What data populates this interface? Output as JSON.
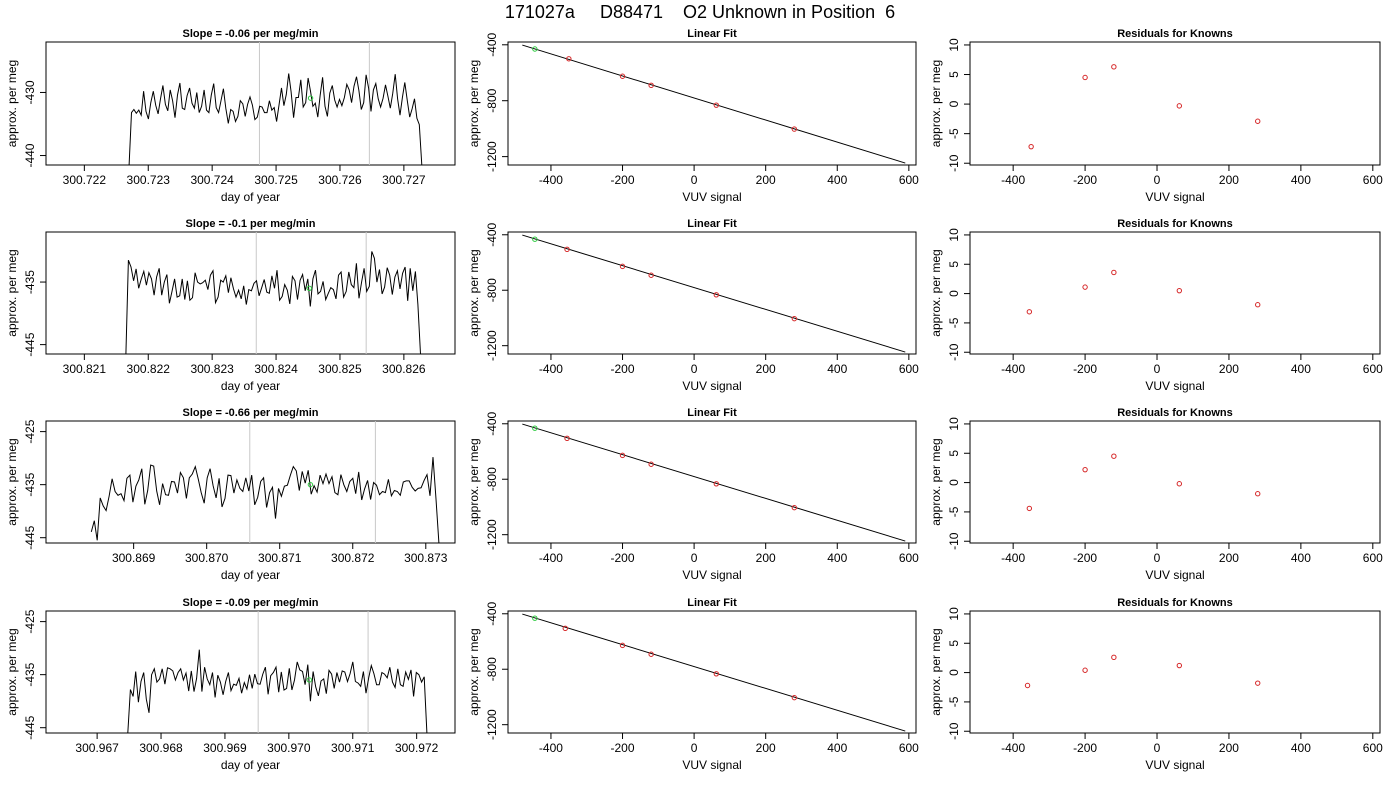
{
  "page_title": "171027a     D88471    O2 Unknown in Position  6",
  "chart_data": [
    {
      "type": "line",
      "title": "Slope =  -0.06  per meg/min",
      "xlabel": "day of year",
      "ylabel": "approx. per meg",
      "xlim": [
        300.7214,
        300.7278
      ],
      "ylim": [
        -441.5,
        -422
      ],
      "x_ticks": [
        "300.722",
        "300.723",
        "300.724",
        "300.725",
        "300.726",
        "300.727"
      ],
      "y_ticks": [
        "-440",
        "-430"
      ],
      "y_tick_values": [
        -440,
        -430
      ],
      "trace": {
        "x_start": 300.7227,
        "x_end": 300.72728,
        "values": [
          -441.5,
          -433.2,
          -432.7,
          -433.3,
          -432.8,
          -433.6,
          -429.8,
          -433.0,
          -434.2,
          -431.6,
          -429.8,
          -432.0,
          -433.4,
          -431.0,
          -428.9,
          -431.9,
          -432.9,
          -429.6,
          -431.3,
          -434.0,
          -430.4,
          -428.5,
          -432.5,
          -432.7,
          -430.5,
          -429.3,
          -431.7,
          -432.5,
          -430.0,
          -433.2,
          -432.2,
          -429.6,
          -432.8,
          -433.2,
          -430.4,
          -428.6,
          -432.4,
          -433.2,
          -431.3,
          -429.4,
          -432.5,
          -434.9,
          -432.7,
          -433.0,
          -434.6,
          -433.8,
          -431.3,
          -431.8,
          -433.8,
          -431.9,
          -430.7,
          -432.0,
          -434.3,
          -433.9,
          -432.2,
          -432.3,
          -433.2,
          -433.2,
          -431.3,
          -432.8,
          -432.4,
          -434.6,
          -431.9,
          -429.3,
          -432.1,
          -430.3,
          -427.0,
          -429.9,
          -434.0,
          -430.8,
          -430.8,
          -428.0,
          -432.3,
          -431.6,
          -427.7,
          -429.8,
          -432.2,
          -431.7,
          -433.9,
          -430.4,
          -427.6,
          -432.2,
          -433.8,
          -430.1,
          -428.9,
          -431.2,
          -432.3,
          -431.1,
          -432.1,
          -430.8,
          -428.7,
          -429.6,
          -431.6,
          -429.0,
          -427.5,
          -429.7,
          -432.7,
          -431.6,
          -427.2,
          -429.3,
          -433.0,
          -429.6,
          -428.6,
          -431.0,
          -432.3,
          -430.9,
          -428.8,
          -430.6,
          -432.5,
          -430.2,
          -427.1,
          -431.0,
          -433.6,
          -430.8,
          -428.4,
          -431.3,
          -433.9,
          -432.6,
          -431.0,
          -434.1,
          -435.1,
          -441.5
        ]
      },
      "vlines": [
        300.72474,
        300.72646
      ],
      "green_point": {
        "x": 300.72554,
        "y": -430.9
      }
    },
    {
      "type": "scatter",
      "title": "Linear Fit",
      "xlabel": "VUV signal",
      "ylabel": "approx. per meg",
      "xlim": [
        -520,
        620
      ],
      "ylim": [
        -1260,
        -380
      ],
      "x_ticks": [
        "-400",
        "-200",
        "0",
        "200",
        "400",
        "600"
      ],
      "y_ticks": [
        "-400",
        "-800",
        "-1200"
      ],
      "y_tick_values": [
        -400,
        -800,
        -1200
      ],
      "fit_line": {
        "x": [
          -480,
          590
        ],
        "y": [
          -402,
          -1246
        ]
      },
      "known_points": [
        {
          "x": -350,
          "y": -500
        },
        {
          "x": -200,
          "y": -625
        },
        {
          "x": -120,
          "y": -690
        },
        {
          "x": 62,
          "y": -832
        },
        {
          "x": 280,
          "y": -1003
        }
      ],
      "unknown_point": {
        "x": -445,
        "y": -430
      }
    },
    {
      "type": "scatter",
      "title": "Residuals for Knowns",
      "xlabel": "VUV signal",
      "ylabel": "approx. per meg",
      "xlim": [
        -520,
        620
      ],
      "ylim": [
        -10.3,
        10.5
      ],
      "x_ticks": [
        "-400",
        "-200",
        "0",
        "200",
        "400",
        "600"
      ],
      "y_ticks": [
        "-10",
        "-5",
        "0",
        "5",
        "10"
      ],
      "y_tick_values": [
        -10,
        -5,
        0,
        5,
        10
      ],
      "points": [
        {
          "x": -350,
          "y": -7.2
        },
        {
          "x": -200,
          "y": 4.5
        },
        {
          "x": -120,
          "y": 6.3
        },
        {
          "x": 62,
          "y": -0.3
        },
        {
          "x": 280,
          "y": -2.9
        }
      ]
    },
    {
      "type": "line",
      "title": "Slope =  -0.1  per meg/min",
      "xlabel": "day of year",
      "ylabel": "approx. per meg",
      "xlim": [
        300.8204,
        300.8268
      ],
      "ylim": [
        -446.5,
        -427
      ],
      "x_ticks": [
        "300.821",
        "300.822",
        "300.823",
        "300.824",
        "300.825",
        "300.826"
      ],
      "y_ticks": [
        "-445",
        "-435"
      ],
      "y_tick_values": [
        -445,
        -435
      ],
      "trace": {
        "x_start": 300.82165,
        "x_end": 300.82626,
        "values": [
          -446.5,
          -431.5,
          -432.6,
          -434.8,
          -432.9,
          -436.0,
          -434.5,
          -433.3,
          -435.5,
          -433.5,
          -434.5,
          -437.1,
          -434.2,
          -432.8,
          -437.1,
          -435.0,
          -433.8,
          -438.4,
          -436.5,
          -434.5,
          -437.4,
          -437.2,
          -434.5,
          -437.8,
          -434.8,
          -437.9,
          -437.5,
          -433.5,
          -435.0,
          -435.3,
          -435.1,
          -434.7,
          -436.2,
          -433.9,
          -433.2,
          -438.3,
          -437.4,
          -434.7,
          -435.0,
          -434.0,
          -436.7,
          -434.3,
          -436.1,
          -437.4,
          -436.3,
          -437.7,
          -435.6,
          -438.6,
          -436.2,
          -436.4,
          -435.2,
          -434.8,
          -437.2,
          -435.9,
          -434.6,
          -436.6,
          -436.8,
          -434.0,
          -436.0,
          -433.1,
          -437.9,
          -437.3,
          -435.4,
          -436.3,
          -438.5,
          -434.1,
          -434.8,
          -437.8,
          -434.7,
          -433.8,
          -436.4,
          -434.5,
          -438.9,
          -434.5,
          -433.1,
          -436.9,
          -436.5,
          -434.9,
          -437.8,
          -436.8,
          -435.9,
          -436.2,
          -437.7,
          -433.9,
          -433.4,
          -437.4,
          -436.5,
          -433.4,
          -435.4,
          -435.9,
          -432.0,
          -437.6,
          -435.0,
          -432.8,
          -436.5,
          -435.7,
          -430.1,
          -431.2,
          -435.0,
          -433.0,
          -436.9,
          -435.8,
          -432.7,
          -433.9,
          -437.0,
          -434.2,
          -433.2,
          -436.1,
          -433.6,
          -432.6,
          -438.0,
          -432.8,
          -436.4,
          -433.3,
          -438.6,
          -446.5
        ]
      },
      "vlines": [
        300.82369,
        300.82541
      ],
      "green_point": {
        "x": 300.82452,
        "y": -436.0
      }
    },
    {
      "type": "scatter",
      "title": "Linear Fit",
      "xlabel": "VUV signal",
      "ylabel": "approx. per meg",
      "xlim": [
        -520,
        620
      ],
      "ylim": [
        -1260,
        -380
      ],
      "x_ticks": [
        "-400",
        "-200",
        "0",
        "200",
        "400",
        "600"
      ],
      "y_ticks": [
        "-400",
        "-800",
        "-1200"
      ],
      "y_tick_values": [
        -400,
        -800,
        -1200
      ],
      "fit_line": {
        "x": [
          -480,
          590
        ],
        "y": [
          -402,
          -1246
        ]
      },
      "known_points": [
        {
          "x": -355,
          "y": -505
        },
        {
          "x": -200,
          "y": -628
        },
        {
          "x": -120,
          "y": -692
        },
        {
          "x": 62,
          "y": -833
        },
        {
          "x": 280,
          "y": -1005
        }
      ],
      "unknown_point": {
        "x": -445,
        "y": -432
      }
    },
    {
      "type": "scatter",
      "title": "Residuals for Knowns",
      "xlabel": "VUV signal",
      "ylabel": "approx. per meg",
      "xlim": [
        -520,
        620
      ],
      "ylim": [
        -10.3,
        10.5
      ],
      "x_ticks": [
        "-400",
        "-200",
        "0",
        "200",
        "400",
        "600"
      ],
      "y_ticks": [
        "-10",
        "-5",
        "0",
        "5",
        "10"
      ],
      "y_tick_values": [
        -10,
        -5,
        0,
        5,
        10
      ],
      "points": [
        {
          "x": -355,
          "y": -3.1
        },
        {
          "x": -200,
          "y": 1.1
        },
        {
          "x": -120,
          "y": 3.6
        },
        {
          "x": 62,
          "y": 0.5
        },
        {
          "x": 280,
          "y": -1.9
        }
      ]
    },
    {
      "type": "line",
      "title": "Slope =  -0.66  per meg/min",
      "xlabel": "day of year",
      "ylabel": "approx. per meg",
      "xlim": [
        300.8678,
        300.8734
      ],
      "ylim": [
        -446,
        -423
      ],
      "x_ticks": [
        "300.869",
        "300.870",
        "300.871",
        "300.872",
        "300.873"
      ],
      "y_ticks": [
        "-445",
        "-435",
        "-425"
      ],
      "y_tick_values": [
        -445,
        -435,
        -425
      ],
      "trace": {
        "x_start": 300.86842,
        "x_end": 300.87318,
        "values": [
          -443.9,
          -441.8,
          -445.5,
          -437.5,
          -439.0,
          -439.9,
          -437.2,
          -433.9,
          -436.3,
          -437.0,
          -436.7,
          -438.0,
          -433.8,
          -433.2,
          -438.3,
          -435.3,
          -434.1,
          -432.0,
          -438.7,
          -436.1,
          -431.3,
          -431.5,
          -436.2,
          -438.8,
          -434.8,
          -436.9,
          -437.0,
          -434.4,
          -434.5,
          -436.6,
          -432.7,
          -433.7,
          -437.6,
          -433.7,
          -433.0,
          -431.6,
          -434.0,
          -436.5,
          -438.5,
          -433.7,
          -432.0,
          -435.2,
          -437.5,
          -433.8,
          -439.2,
          -437.6,
          -433.2,
          -433.3,
          -436.6,
          -434.1,
          -435.7,
          -436.3,
          -433.7,
          -436.2,
          -433.2,
          -438.8,
          -437.4,
          -434.4,
          -433.7,
          -439.3,
          -436.5,
          -435.5,
          -441.4,
          -435.7,
          -437.2,
          -435.3,
          -435.1,
          -433.2,
          -431.6,
          -432.4,
          -436.1,
          -432.5,
          -434.7,
          -432.3,
          -436.8,
          -435.2,
          -436.4,
          -433.2,
          -434.8,
          -433.0,
          -434.8,
          -433.5,
          -436.5,
          -436.9,
          -433.1,
          -435.0,
          -436.3,
          -434.4,
          -433.8,
          -436.7,
          -432.6,
          -437.9,
          -435.8,
          -434.2,
          -437.8,
          -434.6,
          -435.1,
          -436.9,
          -436.3,
          -436.5,
          -434.0,
          -437.1,
          -436.1,
          -436.3,
          -437.0,
          -434.5,
          -434.3,
          -434.3,
          -435.5,
          -436.2,
          -435.7,
          -435.6,
          -434.2,
          -433.1,
          -437.1,
          -429.8,
          -437.7,
          -446.0
        ]
      },
      "vlines": [
        300.87059,
        300.87231
      ],
      "green_point": {
        "x": 300.87142,
        "y": -435.0
      }
    },
    {
      "type": "scatter",
      "title": "Linear Fit",
      "xlabel": "VUV signal",
      "ylabel": "approx. per meg",
      "xlim": [
        -520,
        620
      ],
      "ylim": [
        -1260,
        -380
      ],
      "x_ticks": [
        "-400",
        "-200",
        "0",
        "200",
        "400",
        "600"
      ],
      "y_ticks": [
        "-400",
        "-800",
        "-1200"
      ],
      "y_tick_values": [
        -400,
        -800,
        -1200
      ],
      "fit_line": {
        "x": [
          -480,
          590
        ],
        "y": [
          -402,
          -1246
        ]
      },
      "known_points": [
        {
          "x": -355,
          "y": -505
        },
        {
          "x": -200,
          "y": -628
        },
        {
          "x": -120,
          "y": -692
        },
        {
          "x": 62,
          "y": -833
        },
        {
          "x": 280,
          "y": -1005
        }
      ],
      "unknown_point": {
        "x": -445,
        "y": -432
      }
    },
    {
      "type": "scatter",
      "title": "Residuals for Knowns",
      "xlabel": "VUV signal",
      "ylabel": "approx. per meg",
      "xlim": [
        -520,
        620
      ],
      "ylim": [
        -10.3,
        10.5
      ],
      "x_ticks": [
        "-400",
        "-200",
        "0",
        "200",
        "400",
        "600"
      ],
      "y_ticks": [
        "-10",
        "-5",
        "0",
        "5",
        "10"
      ],
      "y_tick_values": [
        -10,
        -5,
        0,
        5,
        10
      ],
      "points": [
        {
          "x": -355,
          "y": -4.4
        },
        {
          "x": -200,
          "y": 2.2
        },
        {
          "x": -120,
          "y": 4.5
        },
        {
          "x": 62,
          "y": -0.2
        },
        {
          "x": 280,
          "y": -1.9
        }
      ]
    },
    {
      "type": "line",
      "title": "Slope =  -0.09  per meg/min",
      "xlabel": "day of year",
      "ylabel": "approx. per meg",
      "xlim": [
        300.9662,
        300.9726
      ],
      "ylim": [
        -446,
        -423
      ],
      "x_ticks": [
        "300.967",
        "300.968",
        "300.969",
        "300.970",
        "300.971",
        "300.972"
      ],
      "y_ticks": [
        "-445",
        "-435",
        "-425"
      ],
      "y_tick_values": [
        -445,
        -435,
        -425
      ],
      "trace": {
        "x_start": 300.96748,
        "x_end": 300.97216,
        "values": [
          -446.0,
          -437.8,
          -439.1,
          -434.4,
          -440.2,
          -436.3,
          -434.6,
          -439.6,
          -442.2,
          -435.0,
          -433.9,
          -436.4,
          -435.8,
          -433.9,
          -436.8,
          -433.7,
          -433.9,
          -434.3,
          -436.0,
          -434.6,
          -433.9,
          -436.0,
          -434.7,
          -438.1,
          -434.3,
          -438.2,
          -435.7,
          -430.3,
          -438.2,
          -433.6,
          -435.8,
          -436.9,
          -434.6,
          -439.3,
          -435.1,
          -436.4,
          -438.8,
          -436.3,
          -434.6,
          -438.0,
          -436.8,
          -437.0,
          -435.7,
          -438.5,
          -436.5,
          -437.7,
          -435.0,
          -437.6,
          -434.9,
          -436.7,
          -436.8,
          -434.9,
          -433.6,
          -438.7,
          -435.2,
          -434.6,
          -433.6,
          -438.3,
          -434.5,
          -437.9,
          -437.6,
          -433.8,
          -437.9,
          -436.0,
          -432.6,
          -434.1,
          -434.4,
          -436.9,
          -433.1,
          -440.0,
          -434.4,
          -437.3,
          -439.0,
          -436.2,
          -435.8,
          -438.6,
          -434.2,
          -434.9,
          -437.6,
          -434.6,
          -436.4,
          -434.3,
          -434.5,
          -436.3,
          -434.8,
          -432.6,
          -436.3,
          -436.6,
          -437.2,
          -434.4,
          -438.5,
          -435.6,
          -433.3,
          -434.8,
          -436.9,
          -436.9,
          -434.6,
          -434.9,
          -435.6,
          -433.6,
          -436.4,
          -437.4,
          -433.9,
          -436.9,
          -437.2,
          -434.5,
          -435.9,
          -434.1,
          -439.1,
          -434.6,
          -435.0,
          -436.4,
          -435.4,
          -446.0
        ]
      },
      "vlines": [
        300.96952,
        300.97124
      ],
      "green_point": {
        "x": 300.97032,
        "y": -436.0
      }
    },
    {
      "type": "scatter",
      "title": "Linear Fit",
      "xlabel": "VUV signal",
      "ylabel": "approx. per meg",
      "xlim": [
        -520,
        620
      ],
      "ylim": [
        -1260,
        -380
      ],
      "x_ticks": [
        "-400",
        "-200",
        "0",
        "200",
        "400",
        "600"
      ],
      "y_ticks": [
        "-400",
        "-800",
        "-1200"
      ],
      "y_tick_values": [
        -400,
        -800,
        -1200
      ],
      "fit_line": {
        "x": [
          -480,
          590
        ],
        "y": [
          -402,
          -1246
        ]
      },
      "known_points": [
        {
          "x": -360,
          "y": -505
        },
        {
          "x": -200,
          "y": -628
        },
        {
          "x": -120,
          "y": -692
        },
        {
          "x": 62,
          "y": -833
        },
        {
          "x": 280,
          "y": -1005
        }
      ],
      "unknown_point": {
        "x": -445,
        "y": -432
      }
    },
    {
      "type": "scatter",
      "title": "Residuals for Knowns",
      "xlabel": "VUV signal",
      "ylabel": "approx. per meg",
      "xlim": [
        -520,
        620
      ],
      "ylim": [
        -10.3,
        10.5
      ],
      "x_ticks": [
        "-400",
        "-200",
        "0",
        "200",
        "400",
        "600"
      ],
      "y_ticks": [
        "-10",
        "-5",
        "0",
        "5",
        "10"
      ],
      "y_tick_values": [
        -10,
        -5,
        0,
        5,
        10
      ],
      "points": [
        {
          "x": -360,
          "y": -2.2
        },
        {
          "x": -200,
          "y": 0.4
        },
        {
          "x": -120,
          "y": 2.6
        },
        {
          "x": 62,
          "y": 1.2
        },
        {
          "x": 280,
          "y": -1.8
        }
      ]
    }
  ],
  "colors": {
    "trace": "#000000",
    "marker_known": "#d62728",
    "marker_unknown": "#2ecc40",
    "vline": "#c8c8c8"
  }
}
